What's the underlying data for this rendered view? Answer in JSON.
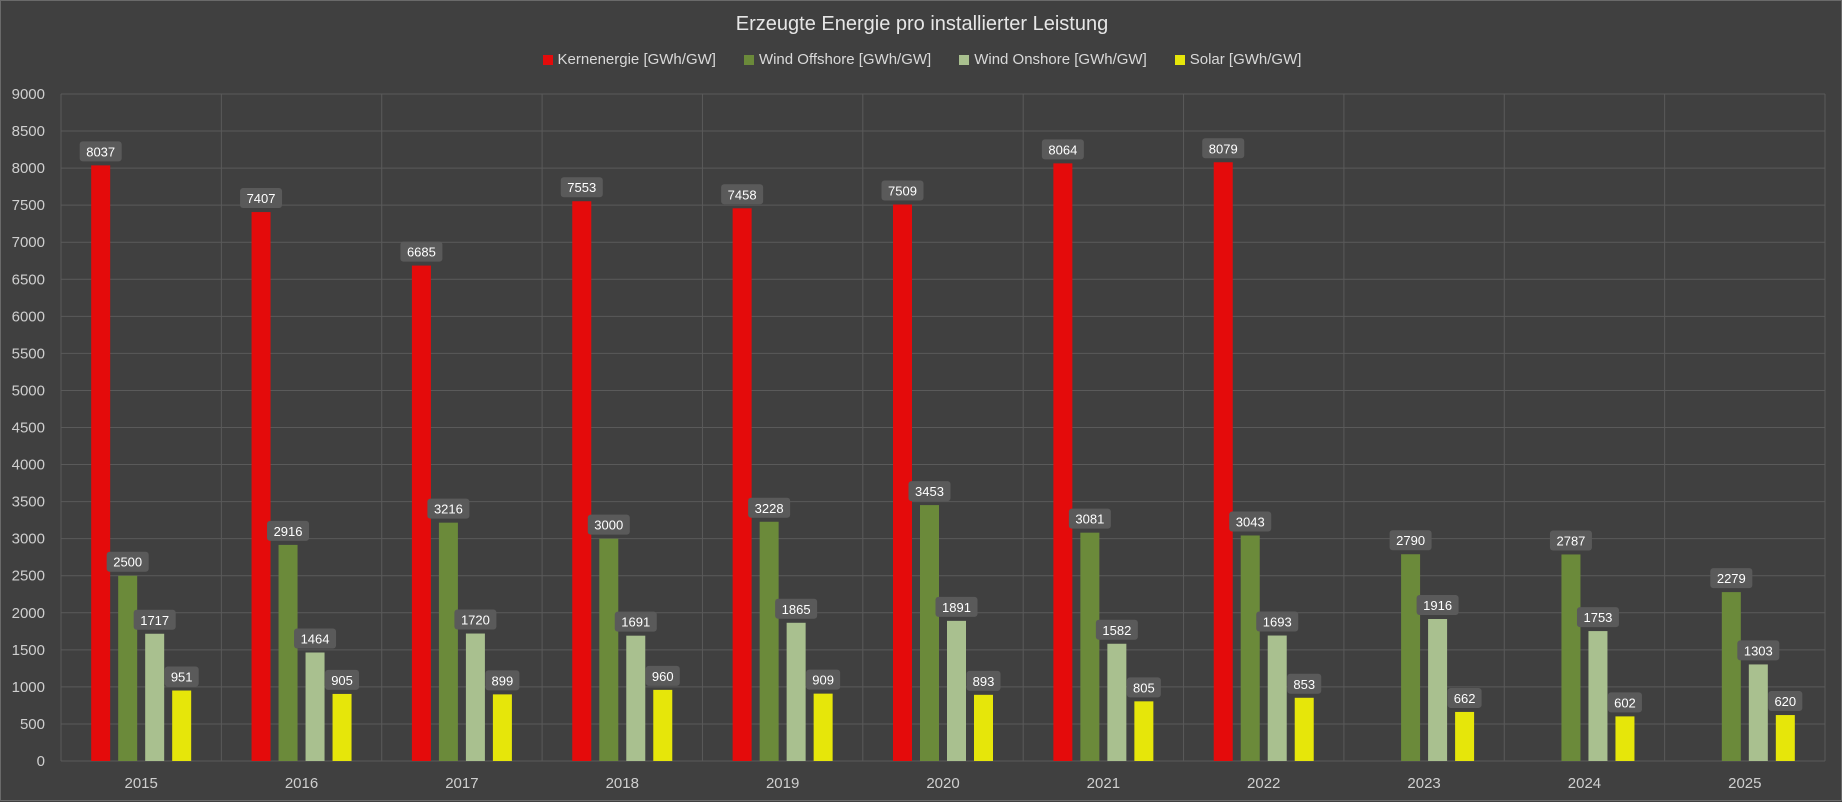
{
  "chart_data": {
    "type": "bar",
    "title": "Erzeugte Energie pro installierter Leistung",
    "xlabel": "",
    "ylabel": "",
    "ylim": [
      0,
      9000
    ],
    "ytick_step": 500,
    "grid": true,
    "legend_position": "top-center",
    "categories": [
      "2015",
      "2016",
      "2017",
      "2018",
      "2019",
      "2020",
      "2021",
      "2022",
      "2023",
      "2024",
      "2025"
    ],
    "series": [
      {
        "name": "Kernenergie [GWh/GW]",
        "color": "#e40b0b",
        "values": [
          8037,
          7407,
          6685,
          7553,
          7458,
          7509,
          8064,
          8079,
          null,
          null,
          null
        ]
      },
      {
        "name": "Wind Offshore [GWh/GW]",
        "color": "#6b8a3a",
        "values": [
          2500,
          2916,
          3216,
          3000,
          3228,
          3453,
          3081,
          3043,
          2790,
          2787,
          2279
        ]
      },
      {
        "name": "Wind Onshore [GWh/GW]",
        "color": "#a9c08f",
        "values": [
          1717,
          1464,
          1720,
          1691,
          1865,
          1891,
          1582,
          1693,
          1916,
          1753,
          1303
        ]
      },
      {
        "name": "Solar [GWh/GW]",
        "color": "#e6e60a",
        "values": [
          951,
          905,
          899,
          960,
          909,
          893,
          805,
          853,
          662,
          602,
          620
        ]
      }
    ]
  }
}
